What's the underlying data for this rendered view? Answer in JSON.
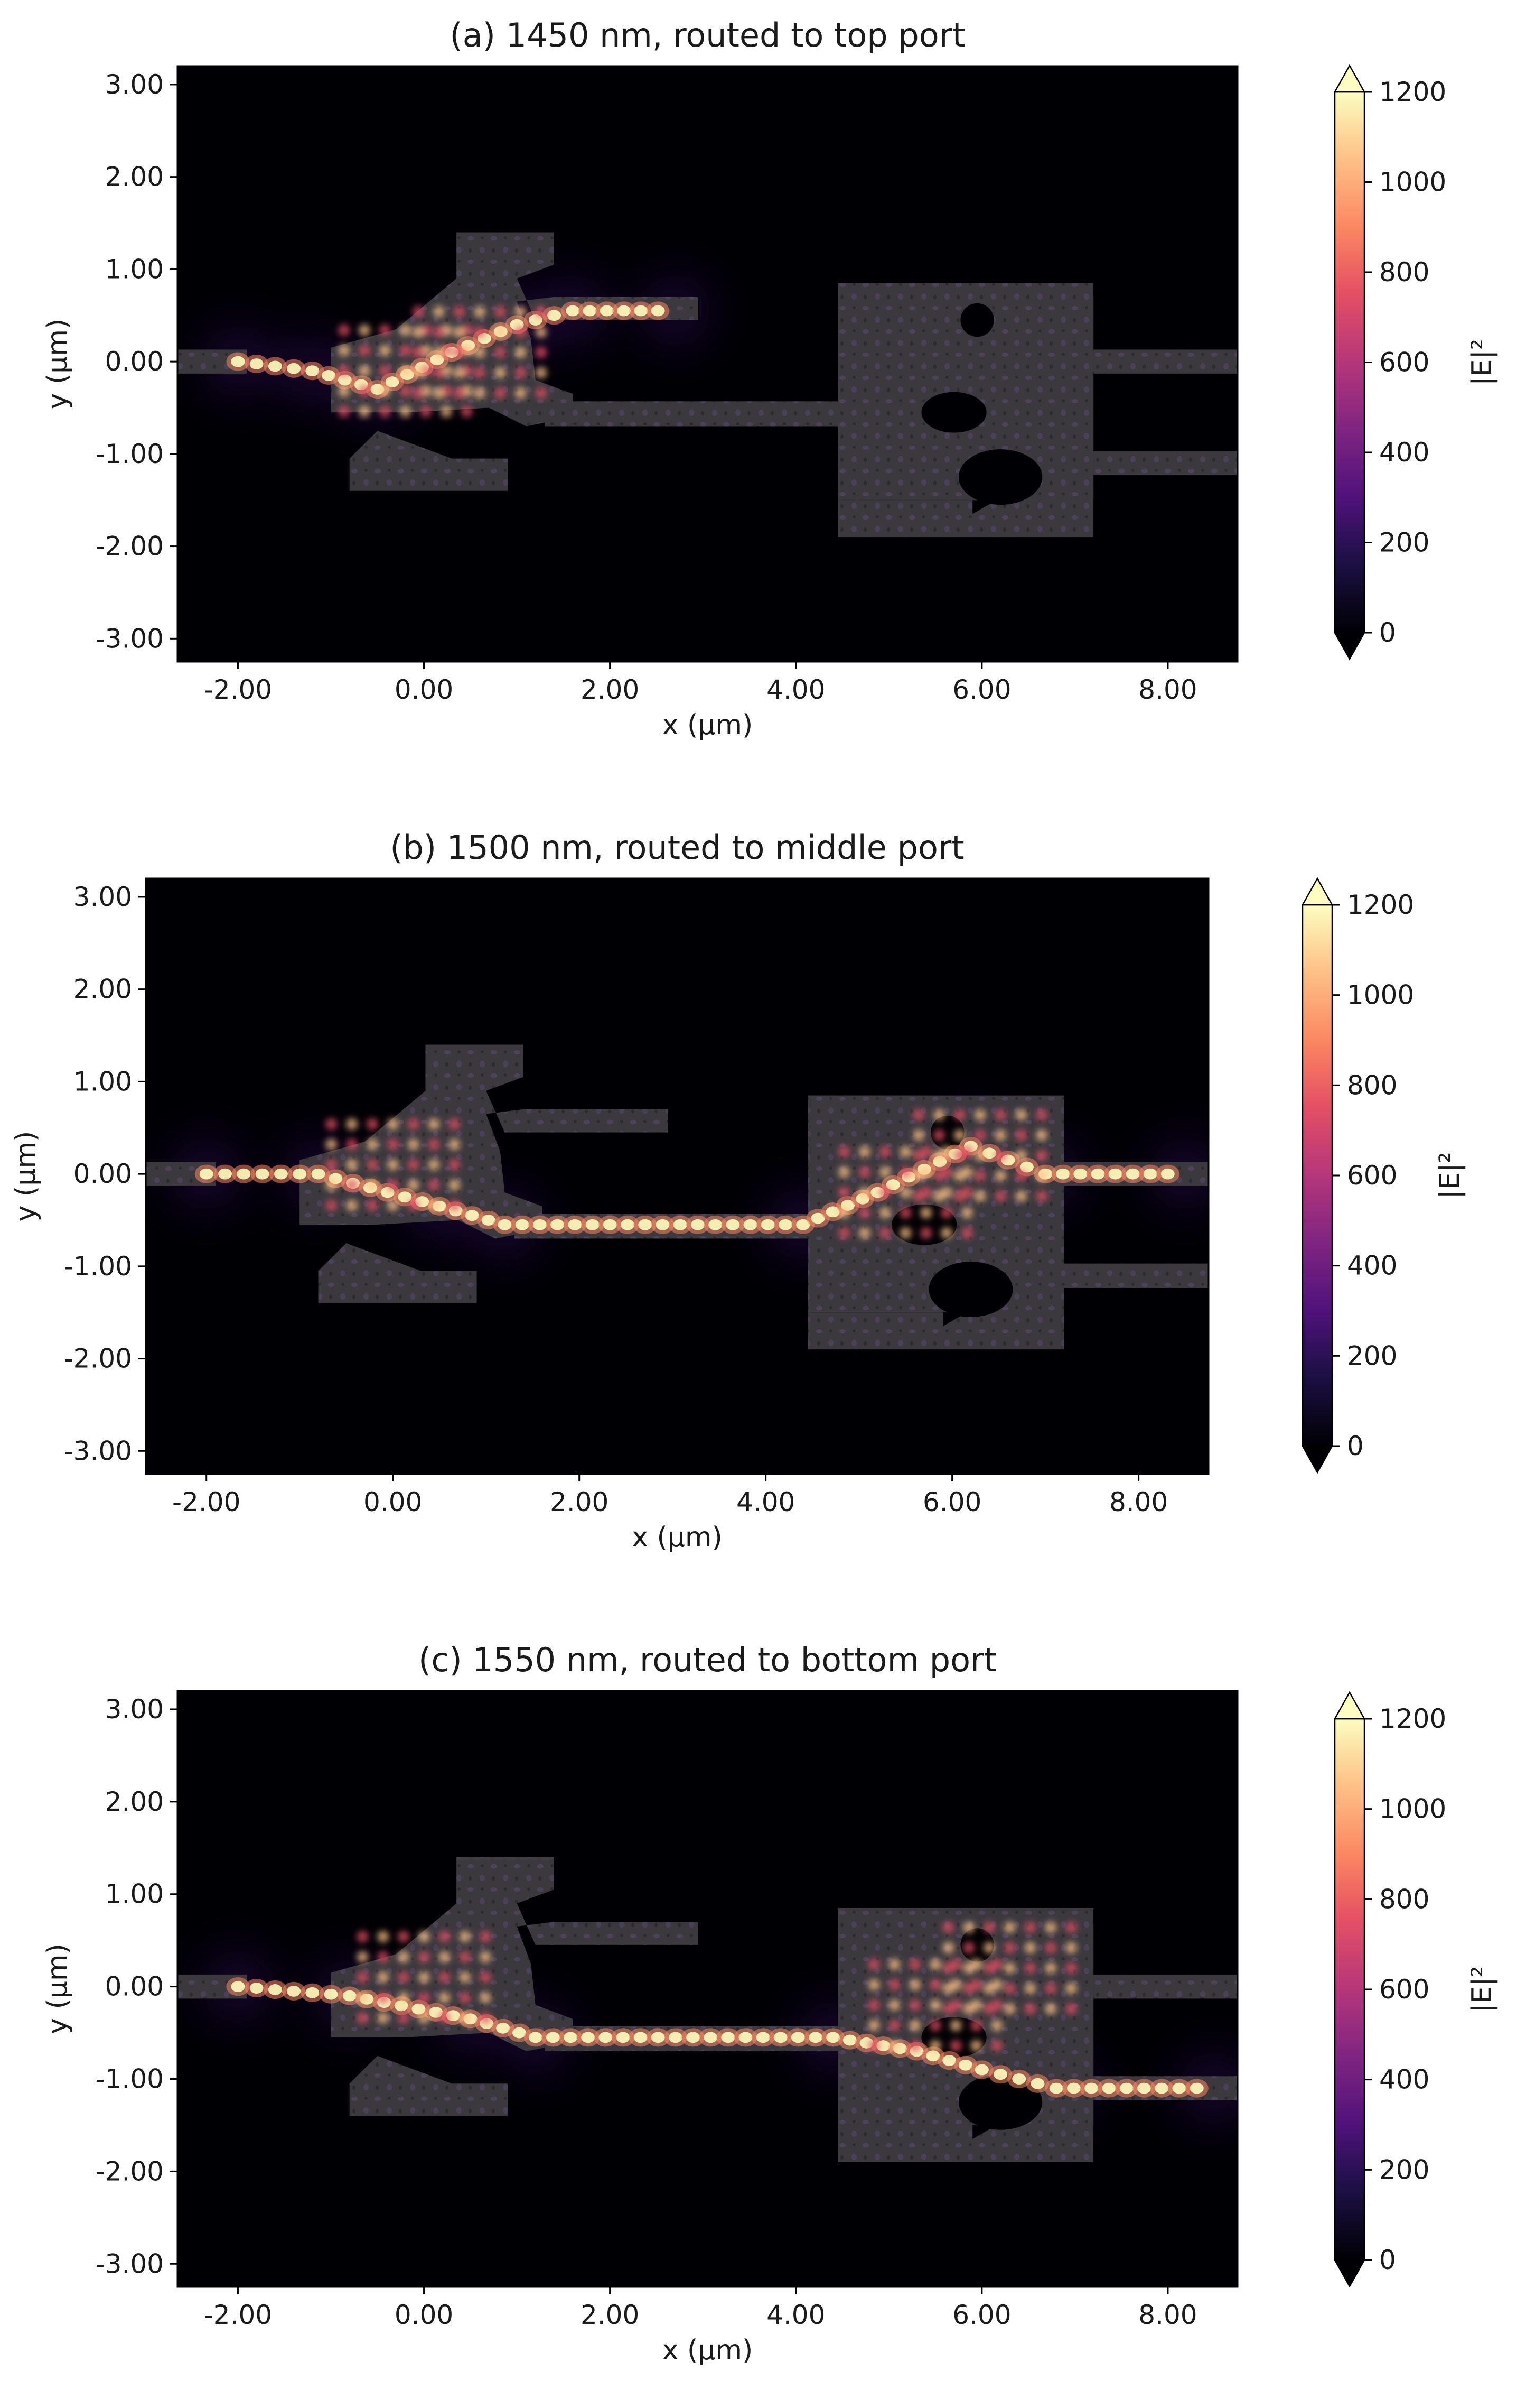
{
  "chart_data": [
    {
      "type": "heatmap",
      "title": "(a) 1450 nm, routed to top port",
      "xlabel": "x (µm)",
      "ylabel": "y (µm)",
      "xlim": [
        -2.65,
        8.75
      ],
      "ylim": [
        -3.25,
        3.2
      ],
      "xticks": [
        "-2.00",
        "0.00",
        "2.00",
        "4.00",
        "6.00",
        "8.00"
      ],
      "xtick_values": [
        -2,
        0,
        2,
        4,
        6,
        8
      ],
      "yticks": [
        "3.00",
        "2.00",
        "1.00",
        "0.00",
        "-1.00",
        "-2.00",
        "-3.00"
      ],
      "ytick_values": [
        3,
        2,
        1,
        0,
        -1,
        -2,
        -3
      ],
      "colorbar": {
        "label": "|E|²",
        "ticks": [
          "1200",
          "1000",
          "800",
          "600",
          "400",
          "200",
          "0"
        ],
        "tick_values": [
          1200,
          1000,
          800,
          600,
          400,
          200,
          0
        ],
        "vmin": 0,
        "vmax": 1200,
        "colormap": "magma",
        "extend": "both"
      },
      "wavelength_nm": 1450,
      "routed_to": "top port",
      "field_path": [
        [
          -2.0,
          0.0
        ],
        [
          -1.2,
          -0.1
        ],
        [
          -0.5,
          -0.3
        ],
        [
          0.3,
          0.1
        ],
        [
          1.0,
          0.4
        ],
        [
          1.6,
          0.55
        ],
        [
          2.7,
          0.55
        ]
      ],
      "output_y": 0.0
    },
    {
      "type": "heatmap",
      "title": "(b) 1500 nm, routed to middle port",
      "xlabel": "x (µm)",
      "ylabel": "y (µm)",
      "xlim": [
        -2.65,
        8.75
      ],
      "ylim": [
        -3.25,
        3.2
      ],
      "xticks": [
        "-2.00",
        "0.00",
        "2.00",
        "4.00",
        "6.00",
        "8.00"
      ],
      "xtick_values": [
        -2,
        0,
        2,
        4,
        6,
        8
      ],
      "yticks": [
        "3.00",
        "2.00",
        "1.00",
        "0.00",
        "-1.00",
        "-2.00",
        "-3.00"
      ],
      "ytick_values": [
        3,
        2,
        1,
        0,
        -1,
        -2,
        -3
      ],
      "colorbar": {
        "label": "|E|²",
        "ticks": [
          "1200",
          "1000",
          "800",
          "600",
          "400",
          "200",
          "0"
        ],
        "tick_values": [
          1200,
          1000,
          800,
          600,
          400,
          200,
          0
        ],
        "vmin": 0,
        "vmax": 1200,
        "colormap": "magma",
        "extend": "both"
      },
      "wavelength_nm": 1500,
      "routed_to": "middle port",
      "field_path": [
        [
          -2.0,
          0.0
        ],
        [
          -0.8,
          0.0
        ],
        [
          0.5,
          -0.35
        ],
        [
          1.2,
          -0.55
        ],
        [
          4.4,
          -0.55
        ],
        [
          5.2,
          -0.2
        ],
        [
          6.2,
          0.3
        ],
        [
          7.0,
          0.0
        ],
        [
          8.5,
          0.0
        ]
      ],
      "output_y": 0.0
    },
    {
      "type": "heatmap",
      "title": "(c) 1550 nm, routed to bottom port",
      "xlabel": "x (µm)",
      "ylabel": "y (µm)",
      "xlim": [
        -2.65,
        8.75
      ],
      "ylim": [
        -3.25,
        3.2
      ],
      "xticks": [
        "-2.00",
        "0.00",
        "2.00",
        "4.00",
        "6.00",
        "8.00"
      ],
      "xtick_values": [
        -2,
        0,
        2,
        4,
        6,
        8
      ],
      "yticks": [
        "3.00",
        "2.00",
        "1.00",
        "0.00",
        "-1.00",
        "-2.00",
        "-3.00"
      ],
      "ytick_values": [
        3,
        2,
        1,
        0,
        -1,
        -2,
        -3
      ],
      "colorbar": {
        "label": "|E|²",
        "ticks": [
          "1200",
          "1000",
          "800",
          "600",
          "400",
          "200",
          "0"
        ],
        "tick_values": [
          1200,
          1000,
          800,
          600,
          400,
          200,
          0
        ],
        "vmin": 0,
        "vmax": 1200,
        "colormap": "magma",
        "extend": "both"
      },
      "wavelength_nm": 1550,
      "routed_to": "bottom port",
      "field_path": [
        [
          -2.0,
          0.0
        ],
        [
          -0.8,
          -0.1
        ],
        [
          0.5,
          -0.35
        ],
        [
          1.2,
          -0.55
        ],
        [
          4.4,
          -0.55
        ],
        [
          5.3,
          -0.7
        ],
        [
          6.0,
          -0.9
        ],
        [
          6.8,
          -1.1
        ],
        [
          8.5,
          -1.1
        ]
      ],
      "output_y": -1.1
    }
  ]
}
